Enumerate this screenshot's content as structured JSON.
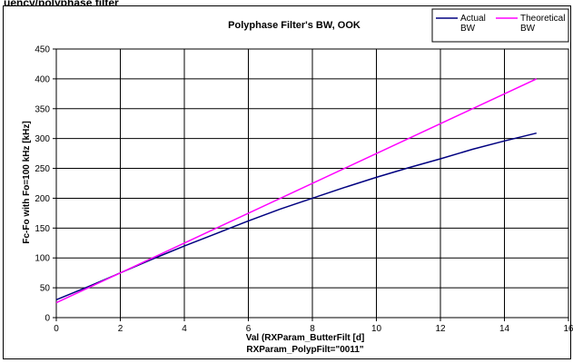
{
  "page_heading": "uency/polyphase filter",
  "chart_data": {
    "type": "line",
    "title": "Polyphase Filter's BW, OOK",
    "xlabel": "Val (RXParam_ButterFilt [d]",
    "xlabel2": "RXParam_PolypFilt=\"0011\"",
    "ylabel": "Fc-Fo with Fo=100 kHz [kHz]",
    "xlim": [
      0,
      16
    ],
    "ylim": [
      0,
      450
    ],
    "xticks": [
      0,
      2,
      4,
      6,
      8,
      10,
      12,
      14,
      16
    ],
    "yticks": [
      0,
      50,
      100,
      150,
      200,
      250,
      300,
      350,
      400,
      450
    ],
    "xtick_labels": [
      "0",
      "2",
      "4",
      "6",
      "8",
      "10",
      "12",
      "14",
      "16"
    ],
    "ytick_labels": [
      "0",
      "50",
      "100",
      "150",
      "200",
      "250",
      "300",
      "350",
      "400",
      "450"
    ],
    "grid": true,
    "legend_position": "top-right",
    "series": [
      {
        "name": "Actual BW",
        "legend_lines": [
          "Actual",
          "BW"
        ],
        "color": "#000080",
        "x": [
          0,
          1,
          2,
          3,
          4,
          5,
          6,
          7,
          8,
          9,
          10,
          11,
          12,
          13,
          14,
          15
        ],
        "y": [
          30,
          52,
          75,
          98,
          120,
          141,
          162,
          182,
          200,
          218,
          235,
          251,
          266,
          282,
          296,
          309
        ]
      },
      {
        "name": "Theoretical BW",
        "legend_lines": [
          "Theoretical",
          "BW"
        ],
        "color": "#ff00ff",
        "x": [
          0,
          15
        ],
        "y": [
          25,
          400
        ]
      }
    ]
  }
}
